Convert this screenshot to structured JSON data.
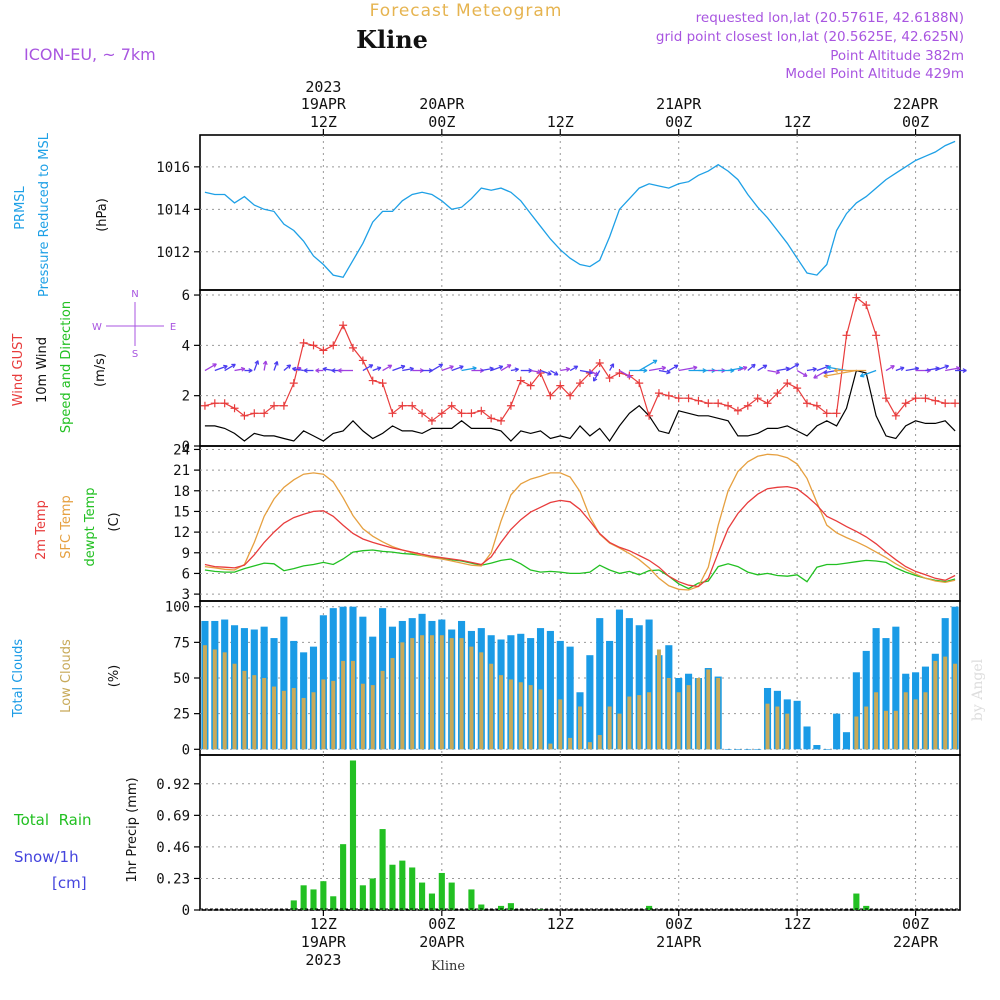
{
  "header": {
    "forecast_title": "Forecast Meteogram",
    "location": "Kline",
    "model": "ICON-EU, ~ 7km",
    "requested": "requested lon,lat (20.5761E, 42.6188N)",
    "grid_point": "grid point closest lon,lat (20.5625E, 42.625N)",
    "point_alt": "Point Altitude 382m",
    "model_alt": "Model Point Altitude 429m",
    "credit": "by Angel",
    "footer": "Kline"
  },
  "colors": {
    "pressure": "#1ea0e6",
    "gust": "#e83c3c",
    "wind": "#000000",
    "temp": "#e83c3c",
    "sfc": "#e6a040",
    "dewpt": "#22c022",
    "clouds_total": "#1a9be6",
    "clouds_low": "#c8aa5a",
    "rain": "#22c022",
    "snow_label": "#4444dd",
    "title": "#e6b450",
    "purple": "#a855e0"
  },
  "time_axis": {
    "top": [
      {
        "hour": 12,
        "line1": "2023",
        "line2": "19APR",
        "line3": "12Z"
      },
      {
        "hour": 24,
        "line1": "",
        "line2": "20APR",
        "line3": "00Z"
      },
      {
        "hour": 36,
        "line1": "",
        "line2": "",
        "line3": "12Z"
      },
      {
        "hour": 48,
        "line1": "",
        "line2": "21APR",
        "line3": "00Z"
      },
      {
        "hour": 60,
        "line1": "",
        "line2": "",
        "line3": "12Z"
      },
      {
        "hour": 72,
        "line1": "",
        "line2": "22APR",
        "line3": "00Z"
      }
    ],
    "bottom": [
      {
        "hour": 12,
        "line1": "12Z",
        "line2": "19APR",
        "line3": "2023"
      },
      {
        "hour": 24,
        "line1": "00Z",
        "line2": "20APR",
        "line3": ""
      },
      {
        "hour": 36,
        "line1": "12Z",
        "line2": "",
        "line3": ""
      },
      {
        "hour": 48,
        "line1": "00Z",
        "line2": "21APR",
        "line3": ""
      },
      {
        "hour": 60,
        "line1": "12Z",
        "line2": "",
        "line3": ""
      },
      {
        "hour": 72,
        "line1": "00Z",
        "line2": "22APR",
        "line3": ""
      }
    ]
  },
  "chart_data": [
    {
      "type": "line",
      "panel": "pressure",
      "label1": "PRMSL",
      "label2": "Pressure Reduced to MSL",
      "unit": "(hPa)",
      "ylim": [
        1010.2,
        1017.5
      ],
      "yticks": [
        1012,
        1014,
        1016
      ],
      "x_hours": [
        0,
        1,
        2,
        3,
        4,
        5,
        6,
        7,
        8,
        9,
        10,
        11,
        12,
        13,
        14,
        15,
        16,
        17,
        18,
        19,
        20,
        21,
        22,
        23,
        24,
        25,
        26,
        27,
        28,
        29,
        30,
        31,
        32,
        33,
        34,
        35,
        36,
        37,
        38,
        39,
        40,
        41,
        42,
        43,
        44,
        45,
        46,
        47,
        48,
        49,
        50,
        51,
        52,
        53,
        54,
        55,
        56,
        57,
        58,
        59,
        60,
        61,
        62,
        63,
        64,
        65,
        66,
        67,
        68,
        69,
        70,
        71,
        72,
        73,
        74,
        75,
        76
      ],
      "values": [
        1014.8,
        1014.7,
        1014.7,
        1014.3,
        1014.6,
        1014.2,
        1014.0,
        1013.9,
        1013.3,
        1013.0,
        1012.5,
        1011.8,
        1011.4,
        1010.9,
        1010.8,
        1011.6,
        1012.4,
        1013.4,
        1013.9,
        1013.9,
        1014.4,
        1014.7,
        1014.8,
        1014.7,
        1014.4,
        1014.0,
        1014.1,
        1014.5,
        1015.0,
        1014.9,
        1015.0,
        1014.8,
        1014.4,
        1013.8,
        1013.2,
        1012.6,
        1012.1,
        1011.7,
        1011.4,
        1011.3,
        1011.6,
        1012.7,
        1014.0,
        1014.5,
        1015.0,
        1015.2,
        1015.1,
        1015.0,
        1015.2,
        1015.3,
        1015.6,
        1015.8,
        1016.1,
        1015.8,
        1015.4,
        1014.7,
        1014.1,
        1013.6,
        1013.0,
        1012.4,
        1011.7,
        1011.0,
        1010.9,
        1011.4,
        1013.0,
        1013.8,
        1014.3,
        1014.6,
        1015.0,
        1015.4,
        1015.7,
        1016.0,
        1016.3,
        1016.5,
        1016.7,
        1017.0,
        1017.2
      ]
    },
    {
      "type": "line",
      "panel": "wind",
      "label_gust": "Wind GUST",
      "label_wind": "10m Wind",
      "label_dir": "Speed and Direction",
      "unit": "(m/s)",
      "compass": {
        "n": "N",
        "s": "S",
        "w": "W",
        "e": "E"
      },
      "ylim": [
        0,
        6.2
      ],
      "yticks": [
        0,
        2,
        4,
        6
      ],
      "x_hours": [
        0,
        1,
        2,
        3,
        4,
        5,
        6,
        7,
        8,
        9,
        10,
        11,
        12,
        13,
        14,
        15,
        16,
        17,
        18,
        19,
        20,
        21,
        22,
        23,
        24,
        25,
        26,
        27,
        28,
        29,
        30,
        31,
        32,
        33,
        34,
        35,
        36,
        37,
        38,
        39,
        40,
        41,
        42,
        43,
        44,
        45,
        46,
        47,
        48,
        49,
        50,
        51,
        52,
        53,
        54,
        55,
        56,
        57,
        58,
        59,
        60,
        61,
        62,
        63,
        64,
        65,
        66,
        67,
        68,
        69,
        70,
        71,
        72,
        73,
        74,
        75,
        76
      ],
      "gust": [
        1.6,
        1.7,
        1.7,
        1.5,
        1.2,
        1.3,
        1.3,
        1.6,
        1.6,
        2.5,
        4.1,
        4.0,
        3.8,
        4.0,
        4.8,
        3.9,
        3.4,
        2.6,
        2.5,
        1.3,
        1.6,
        1.6,
        1.3,
        1.0,
        1.3,
        1.6,
        1.3,
        1.3,
        1.4,
        1.1,
        1.0,
        1.6,
        2.6,
        2.4,
        2.9,
        2.0,
        2.4,
        2.0,
        2.5,
        2.9,
        3.3,
        2.7,
        2.9,
        2.8,
        2.5,
        1.2,
        2.1,
        2.0,
        1.9,
        1.9,
        1.8,
        1.7,
        1.7,
        1.6,
        1.4,
        1.6,
        1.9,
        1.7,
        2.1,
        2.5,
        2.3,
        1.7,
        1.6,
        1.3,
        1.3,
        4.4,
        5.9,
        5.6,
        4.4,
        1.9,
        1.2,
        1.7,
        1.9,
        1.9,
        1.8,
        1.7,
        1.7
      ],
      "wind": [
        0.8,
        0.8,
        0.7,
        0.5,
        0.2,
        0.5,
        0.4,
        0.4,
        0.3,
        0.2,
        0.6,
        0.4,
        0.2,
        0.5,
        0.6,
        1.0,
        0.6,
        0.3,
        0.5,
        0.8,
        0.6,
        0.6,
        0.5,
        0.7,
        0.7,
        0.7,
        1.0,
        0.7,
        0.7,
        0.7,
        0.6,
        0.2,
        0.6,
        0.5,
        0.6,
        0.3,
        0.4,
        0.3,
        0.8,
        0.4,
        0.7,
        0.2,
        0.8,
        1.3,
        1.6,
        1.2,
        0.6,
        0.5,
        1.4,
        1.3,
        1.2,
        1.2,
        1.1,
        1.0,
        0.4,
        0.4,
        0.5,
        0.7,
        0.7,
        0.8,
        0.6,
        0.4,
        0.8,
        1.0,
        0.8,
        1.5,
        3.0,
        2.9,
        1.2,
        0.4,
        0.3,
        0.8,
        1.0,
        0.9,
        0.9,
        1.0,
        0.6
      ],
      "arrow_dir_deg": [
        60,
        70,
        60,
        80,
        90,
        20,
        10,
        20,
        50,
        70,
        280,
        270,
        270,
        280,
        270,
        270,
        60,
        70,
        60,
        70,
        80,
        90,
        90,
        60,
        70,
        70,
        80,
        90,
        80,
        70,
        60,
        80,
        90,
        100,
        110,
        120,
        80,
        60,
        100,
        120,
        210,
        30,
        120,
        90,
        60,
        80,
        100,
        60,
        80,
        90,
        90,
        90,
        90,
        80,
        70,
        50,
        60,
        100,
        80,
        60,
        120,
        80,
        70,
        240,
        260,
        280,
        260,
        270,
        250,
        60,
        70,
        80,
        90,
        80,
        70,
        80,
        90
      ],
      "arrow_speed": [
        0.8,
        0.8,
        0.7,
        0.5,
        0.2,
        0.5,
        0.4,
        0.4,
        0.3,
        0.2,
        0.6,
        0.4,
        0.2,
        0.5,
        0.6,
        1.0,
        0.6,
        0.3,
        0.5,
        0.8,
        0.6,
        0.6,
        0.5,
        0.7,
        0.7,
        0.7,
        1.0,
        0.7,
        0.7,
        0.7,
        0.6,
        0.2,
        0.6,
        0.5,
        0.6,
        0.3,
        0.4,
        0.3,
        0.8,
        0.4,
        0.7,
        0.2,
        0.8,
        1.3,
        1.6,
        1.2,
        0.6,
        0.5,
        1.4,
        1.3,
        1.2,
        1.2,
        1.1,
        1.0,
        0.4,
        0.4,
        0.5,
        0.7,
        0.7,
        0.8,
        0.6,
        0.4,
        0.8,
        1.0,
        0.8,
        1.5,
        3.0,
        2.9,
        1.2,
        0.4,
        0.3,
        0.8,
        1.0,
        0.9,
        0.9,
        1.0,
        0.6
      ]
    },
    {
      "type": "line",
      "panel": "temperature",
      "label_t2m": "2m Temp",
      "label_sfc": "SFC Temp",
      "label_dew": "dewpt Temp",
      "unit": "(C)",
      "ylim": [
        2,
        24.5
      ],
      "yticks": [
        3,
        6,
        9,
        12,
        15,
        18,
        21,
        24
      ],
      "x_hours": [
        0,
        1,
        2,
        3,
        4,
        5,
        6,
        7,
        8,
        9,
        10,
        11,
        12,
        13,
        14,
        15,
        16,
        17,
        18,
        19,
        20,
        21,
        22,
        23,
        24,
        25,
        26,
        27,
        28,
        29,
        30,
        31,
        32,
        33,
        34,
        35,
        36,
        37,
        38,
        39,
        40,
        41,
        42,
        43,
        44,
        45,
        46,
        47,
        48,
        49,
        50,
        51,
        52,
        53,
        54,
        55,
        56,
        57,
        58,
        59,
        60,
        61,
        62,
        63,
        64,
        65,
        66,
        67,
        68,
        69,
        70,
        71,
        72,
        73,
        74,
        75,
        76
      ],
      "t2m": [
        7.3,
        7.0,
        6.9,
        6.8,
        7.2,
        8.7,
        10.5,
        12.0,
        13.3,
        14.1,
        14.6,
        15.0,
        15.1,
        14.3,
        13.0,
        11.8,
        11.0,
        10.5,
        10.1,
        9.7,
        9.4,
        9.1,
        8.8,
        8.5,
        8.3,
        8.1,
        7.9,
        7.6,
        7.3,
        8.4,
        10.5,
        12.4,
        13.8,
        14.9,
        15.6,
        16.3,
        16.6,
        16.4,
        15.3,
        13.6,
        11.8,
        10.5,
        9.8,
        9.3,
        8.6,
        7.9,
        6.9,
        5.6,
        4.8,
        4.3,
        4.1,
        5.3,
        9.0,
        12.5,
        14.7,
        16.3,
        17.5,
        18.3,
        18.5,
        18.6,
        18.3,
        17.2,
        15.9,
        14.3,
        13.6,
        12.8,
        12.1,
        11.3,
        10.3,
        9.1,
        8.0,
        7.0,
        6.3,
        5.8,
        5.3,
        5.0,
        5.7
      ],
      "sfc": [
        7.0,
        6.8,
        6.6,
        6.5,
        7.3,
        10.5,
        14.3,
        16.8,
        18.5,
        19.6,
        20.4,
        20.6,
        20.4,
        19.3,
        17.0,
        14.4,
        12.5,
        11.4,
        10.6,
        9.9,
        9.4,
        9.0,
        8.6,
        8.3,
        8.1,
        7.8,
        7.5,
        7.2,
        7.1,
        9.0,
        13.6,
        17.4,
        19.0,
        19.7,
        20.1,
        20.6,
        20.6,
        20.0,
        17.9,
        14.2,
        11.7,
        10.4,
        9.7,
        8.9,
        8.0,
        6.8,
        5.3,
        4.2,
        3.7,
        3.6,
        4.1,
        6.9,
        13.0,
        18.0,
        20.8,
        22.2,
        23.0,
        23.3,
        23.2,
        22.8,
        21.9,
        19.8,
        16.3,
        13.0,
        11.9,
        11.2,
        10.6,
        9.9,
        9.1,
        8.3,
        7.4,
        6.6,
        5.9,
        5.3,
        4.9,
        4.7,
        5.0
      ],
      "dew": [
        6.5,
        6.3,
        6.2,
        6.2,
        6.7,
        7.1,
        7.5,
        7.4,
        6.4,
        6.7,
        7.1,
        7.3,
        7.6,
        7.3,
        8.1,
        9.1,
        9.3,
        9.4,
        9.2,
        9.1,
        8.9,
        8.8,
        8.6,
        8.4,
        8.2,
        8.0,
        7.8,
        7.5,
        7.2,
        7.5,
        7.9,
        8.1,
        7.4,
        6.5,
        6.2,
        6.3,
        6.2,
        6.0,
        6.0,
        6.2,
        7.2,
        6.5,
        6.0,
        6.3,
        5.8,
        6.4,
        6.5,
        5.6,
        4.5,
        3.8,
        4.6,
        4.9,
        7.0,
        7.4,
        7.0,
        6.2,
        5.8,
        6.0,
        5.7,
        5.6,
        5.8,
        4.8,
        6.9,
        7.3,
        7.3,
        7.5,
        7.7,
        7.9,
        7.8,
        7.6,
        6.8,
        6.2,
        5.7,
        5.3,
        5.0,
        4.8,
        5.2
      ]
    },
    {
      "type": "bar",
      "panel": "clouds",
      "label_total": "Total Clouds",
      "label_low": "Low Clouds",
      "unit": "(%)",
      "ylim": [
        -4,
        104
      ],
      "yticks": [
        0,
        25,
        50,
        75,
        100
      ],
      "x_hours": [
        0,
        1,
        2,
        3,
        4,
        5,
        6,
        7,
        8,
        9,
        10,
        11,
        12,
        13,
        14,
        15,
        16,
        17,
        18,
        19,
        20,
        21,
        22,
        23,
        24,
        25,
        26,
        27,
        28,
        29,
        30,
        31,
        32,
        33,
        34,
        35,
        36,
        37,
        38,
        39,
        40,
        41,
        42,
        43,
        44,
        45,
        46,
        47,
        48,
        49,
        50,
        51,
        52,
        53,
        54,
        55,
        56,
        57,
        58,
        59,
        60,
        61,
        62,
        63,
        64,
        65,
        66,
        67,
        68,
        69,
        70,
        71,
        72,
        73,
        74,
        75,
        76
      ],
      "total": [
        90,
        90,
        91,
        87,
        85,
        84,
        86,
        78,
        93,
        76,
        68,
        72,
        94,
        99,
        100,
        100,
        93,
        79,
        99,
        86,
        90,
        92,
        95,
        90,
        91,
        84,
        90,
        83,
        85,
        80,
        77,
        80,
        81,
        78,
        85,
        83,
        76,
        72,
        40,
        66,
        92,
        76,
        98,
        92,
        87,
        91,
        66,
        73,
        50,
        53,
        50,
        57,
        51,
        0,
        0,
        0,
        0,
        43,
        41,
        35,
        34,
        16,
        3,
        0,
        25,
        12,
        54,
        69,
        85,
        78,
        86,
        53,
        54,
        58,
        67,
        92,
        100
      ],
      "low": [
        73,
        70,
        68,
        60,
        55,
        52,
        50,
        44,
        41,
        43,
        36,
        40,
        49,
        48,
        62,
        62,
        46,
        45,
        55,
        64,
        75,
        78,
        80,
        80,
        80,
        78,
        78,
        72,
        68,
        60,
        52,
        49,
        47,
        45,
        42,
        4,
        35,
        8,
        30,
        5,
        10,
        30,
        25,
        37,
        38,
        40,
        70,
        50,
        40,
        45,
        50,
        56,
        50,
        0,
        0,
        0,
        0,
        32,
        30,
        25,
        0,
        0,
        0,
        0,
        0,
        0,
        23,
        30,
        40,
        27,
        27,
        40,
        35,
        40,
        62,
        65,
        60
      ]
    },
    {
      "type": "bar",
      "panel": "precip",
      "label_rain": "Total  Rain",
      "label_snow": "Snow/1h",
      "label_cm": "[cm]",
      "unit": "1hr Precip (mm)",
      "ylim": [
        0,
        1.13
      ],
      "yticks": [
        0,
        0.23,
        0.46,
        0.69,
        0.92
      ],
      "ytick_labels": [
        "0",
        "0.23",
        "0.46",
        "0.69",
        "0.92"
      ],
      "x_hours": [
        0,
        1,
        2,
        3,
        4,
        5,
        6,
        7,
        8,
        9,
        10,
        11,
        12,
        13,
        14,
        15,
        16,
        17,
        18,
        19,
        20,
        21,
        22,
        23,
        24,
        25,
        26,
        27,
        28,
        29,
        30,
        31,
        32,
        33,
        34,
        35,
        36,
        37,
        38,
        39,
        40,
        41,
        42,
        43,
        44,
        45,
        46,
        47,
        48,
        49,
        50,
        51,
        52,
        53,
        54,
        55,
        56,
        57,
        58,
        59,
        60,
        61,
        62,
        63,
        64,
        65,
        66,
        67,
        68,
        69,
        70,
        71,
        72,
        73,
        74,
        75,
        76
      ],
      "values": [
        0,
        0,
        0,
        0,
        0,
        0,
        0,
        0,
        0,
        0.07,
        0.18,
        0.15,
        0.21,
        0.1,
        0.48,
        1.09,
        0.18,
        0.23,
        0.59,
        0.33,
        0.36,
        0.31,
        0.2,
        0.12,
        0.27,
        0.2,
        0.0,
        0.15,
        0.04,
        0.0,
        0.03,
        0.05,
        0,
        0,
        0.005,
        0,
        0,
        0,
        0,
        0,
        0,
        0,
        0,
        0,
        0,
        0.03,
        0,
        0,
        0,
        0,
        0,
        0,
        0,
        0,
        0,
        0,
        0,
        0,
        0,
        0,
        0,
        0,
        0,
        0,
        0,
        0,
        0.12,
        0.03,
        0,
        0,
        0,
        0,
        0,
        0,
        0,
        0,
        0
      ]
    }
  ]
}
